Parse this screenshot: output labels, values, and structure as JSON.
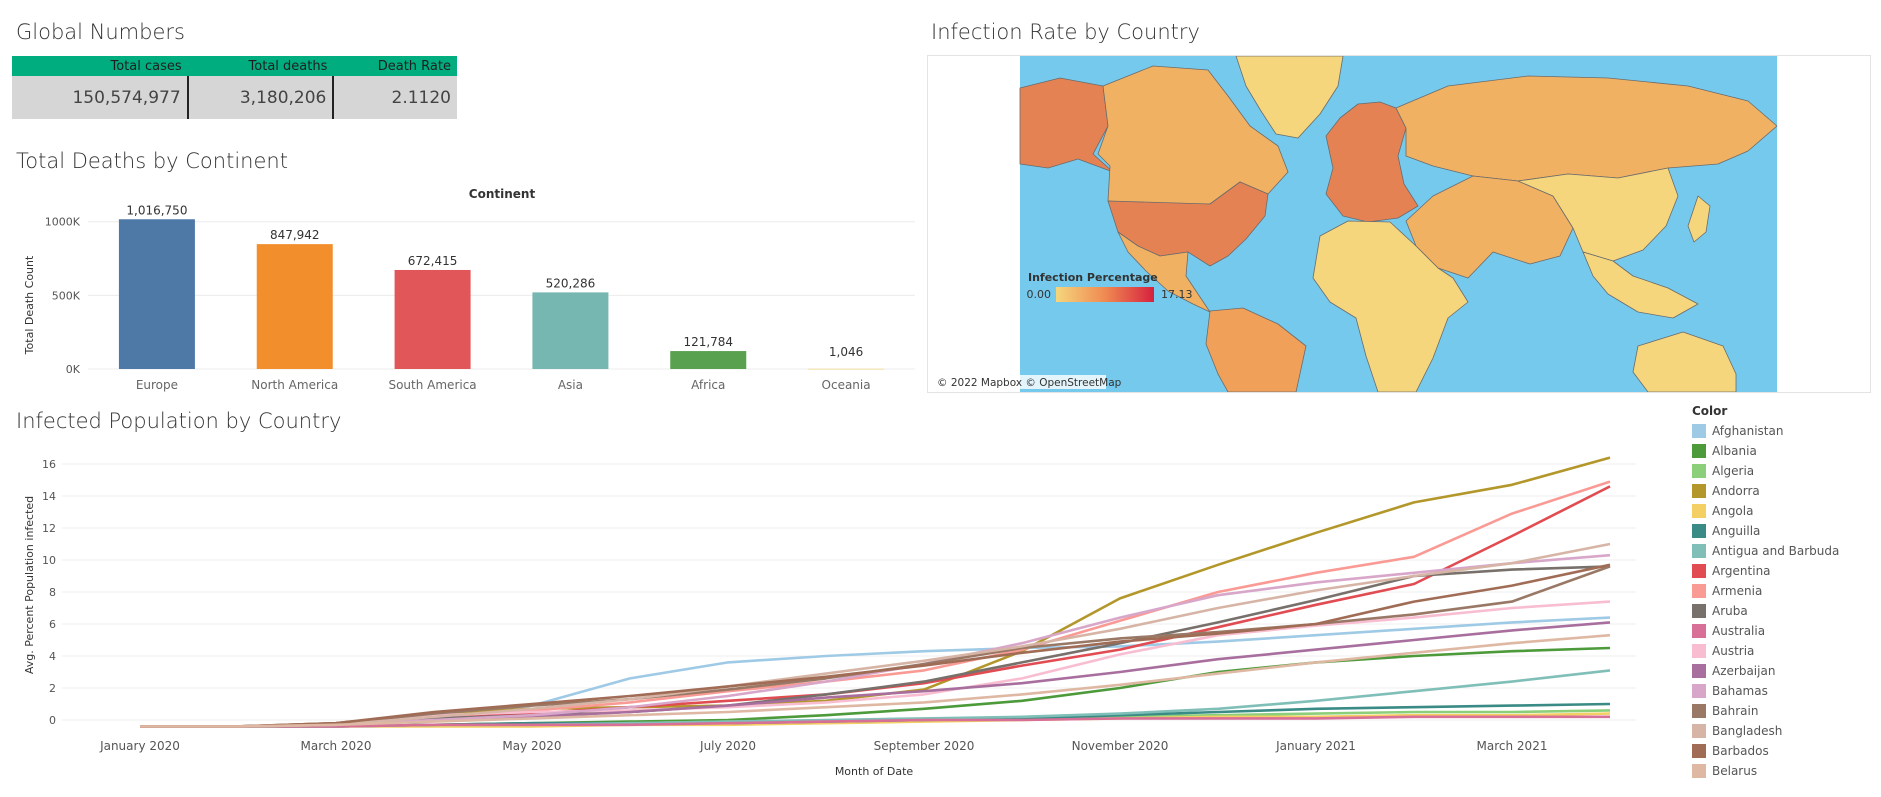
{
  "global_numbers": {
    "title": "Global Numbers",
    "headers": [
      "Total cases",
      "Total deaths",
      "Death Rate"
    ],
    "values": [
      "150,574,977",
      "3,180,206",
      "2.1120"
    ]
  },
  "deaths_by_continent": {
    "title": "Total Deaths by Continent",
    "header": "Continent",
    "ylabel": "Total Death Count"
  },
  "infection_map": {
    "title": "Infection Rate by Country",
    "legend_title": "Infection Percentage",
    "legend_min": "0.00",
    "legend_max": "17.13",
    "attribution": "© 2022 Mapbox © OpenStreetMap",
    "colors": {
      "ocean": "#74c9ec",
      "low": "#f5d67d",
      "high": "#d6213f"
    }
  },
  "infected_population": {
    "title": "Infected Population by Country",
    "legend_title": "Color",
    "legend": [
      {
        "name": "Afghanistan",
        "color": "#9fcae6"
      },
      {
        "name": "Albania",
        "color": "#4c9a3a"
      },
      {
        "name": "Algeria",
        "color": "#8ccf7b"
      },
      {
        "name": "Andorra",
        "color": "#b3972a"
      },
      {
        "name": "Angola",
        "color": "#f4cf64"
      },
      {
        "name": "Anguilla",
        "color": "#3a8b86"
      },
      {
        "name": "Antigua and Barbuda",
        "color": "#80bfb8"
      },
      {
        "name": "Argentina",
        "color": "#e14b52"
      },
      {
        "name": "Armenia",
        "color": "#fa9a95"
      },
      {
        "name": "Aruba",
        "color": "#77706b"
      },
      {
        "name": "Australia",
        "color": "#d86f97"
      },
      {
        "name": "Austria",
        "color": "#f8bdd1"
      },
      {
        "name": "Azerbaijan",
        "color": "#a86f9e"
      },
      {
        "name": "Bahamas",
        "color": "#d8a6c9"
      },
      {
        "name": "Bahrain",
        "color": "#997866"
      },
      {
        "name": "Bangladesh",
        "color": "#d7b5a6"
      },
      {
        "name": "Barbados",
        "color": "#a06c55"
      },
      {
        "name": "Belarus",
        "color": "#dfb8a3"
      }
    ]
  },
  "chart_data": [
    {
      "type": "bar",
      "title": "Total Deaths by Continent",
      "categories": [
        "Europe",
        "North America",
        "South America",
        "Asia",
        "Africa",
        "Oceania"
      ],
      "values": [
        1016750,
        847942,
        672415,
        520286,
        121784,
        1046
      ],
      "value_labels": [
        "1,016,750",
        "847,942",
        "672,415",
        "520,286",
        "121,784",
        "1,046"
      ],
      "colors": [
        "#4e79a7",
        "#f28e2b",
        "#e15759",
        "#76b7b2",
        "#59a14f",
        "#edc948"
      ],
      "ylabel": "Total Death Count",
      "ylim": [
        0,
        1100000
      ],
      "yticks": [
        0,
        500000,
        1000000
      ],
      "ytick_labels": [
        "0K",
        "500K",
        "1000K"
      ]
    },
    {
      "type": "line",
      "title": "Infected Population by Country",
      "xlabel": "Month of Date",
      "ylabel": "Avg. Percent Population infected",
      "x": [
        "2020-01",
        "2020-02",
        "2020-03",
        "2020-04",
        "2020-05",
        "2020-06",
        "2020-07",
        "2020-08",
        "2020-09",
        "2020-10",
        "2020-11",
        "2020-12",
        "2021-01",
        "2021-02",
        "2021-03",
        "2021-04"
      ],
      "xtick_labels": [
        "January 2020",
        "March 2020",
        "May 2020",
        "July 2020",
        "September 2020",
        "November 2020",
        "January 2021",
        "March 2021"
      ],
      "yticks": [
        0,
        2,
        4,
        6,
        8,
        10,
        12,
        14,
        16
      ],
      "ylim": [
        -0.5,
        17
      ],
      "series": [
        {
          "name": "Afghanistan",
          "color": "#9fcae6",
          "values": [
            -0.4,
            -0.4,
            -0.3,
            0.1,
            0.9,
            2.6,
            3.6,
            4.0,
            4.3,
            4.5,
            4.6,
            4.9,
            5.3,
            5.7,
            6.1,
            6.4
          ]
        },
        {
          "name": "Albania",
          "color": "#4c9a3a",
          "values": [
            -0.4,
            -0.4,
            -0.4,
            -0.3,
            -0.2,
            -0.1,
            0.0,
            0.3,
            0.7,
            1.2,
            2.0,
            3.0,
            3.6,
            4.0,
            4.3,
            4.5
          ]
        },
        {
          "name": "Algeria",
          "color": "#8ccf7b",
          "values": [
            -0.4,
            -0.4,
            -0.4,
            -0.3,
            -0.3,
            -0.2,
            -0.1,
            -0.1,
            0.0,
            0.1,
            0.2,
            0.3,
            0.4,
            0.5,
            0.5,
            0.6
          ]
        },
        {
          "name": "Andorra",
          "color": "#b3972a",
          "values": [
            -0.4,
            -0.4,
            -0.2,
            0.4,
            0.7,
            0.8,
            0.9,
            1.2,
            1.9,
            4.3,
            7.6,
            9.7,
            11.7,
            13.6,
            14.7,
            16.4
          ]
        },
        {
          "name": "Angola",
          "color": "#f4cf64",
          "values": [
            -0.4,
            -0.4,
            -0.4,
            -0.4,
            -0.4,
            -0.3,
            -0.3,
            -0.2,
            -0.1,
            0.0,
            0.1,
            0.2,
            0.2,
            0.3,
            0.3,
            0.4
          ]
        },
        {
          "name": "Anguilla",
          "color": "#3a8b86",
          "values": [
            -0.4,
            -0.4,
            -0.4,
            -0.3,
            -0.2,
            -0.2,
            -0.2,
            -0.1,
            0.0,
            0.1,
            0.3,
            0.5,
            0.7,
            0.8,
            0.9,
            1.0
          ]
        },
        {
          "name": "Antigua and Barbuda",
          "color": "#80bfb8",
          "values": [
            -0.4,
            -0.4,
            -0.4,
            -0.3,
            -0.3,
            -0.2,
            -0.1,
            0.0,
            0.1,
            0.2,
            0.4,
            0.7,
            1.2,
            1.8,
            2.4,
            3.1
          ]
        },
        {
          "name": "Argentina",
          "color": "#e14b52",
          "values": [
            -0.4,
            -0.4,
            -0.3,
            0.1,
            0.4,
            0.8,
            1.2,
            1.6,
            2.3,
            3.4,
            4.4,
            5.8,
            7.2,
            8.5,
            11.5,
            14.6
          ]
        },
        {
          "name": "Armenia",
          "color": "#fa9a95",
          "values": [
            -0.4,
            -0.4,
            -0.3,
            0.2,
            0.6,
            1.1,
            1.8,
            2.4,
            3.1,
            4.4,
            6.2,
            8.0,
            9.2,
            10.2,
            12.9,
            14.9
          ]
        },
        {
          "name": "Aruba",
          "color": "#77706b",
          "values": [
            -0.4,
            -0.4,
            -0.3,
            0.1,
            0.3,
            0.5,
            0.9,
            1.6,
            2.4,
            3.6,
            4.8,
            6.1,
            7.5,
            9.0,
            9.4,
            9.6
          ]
        },
        {
          "name": "Australia",
          "color": "#d86f97",
          "values": [
            -0.4,
            -0.4,
            -0.4,
            -0.3,
            -0.3,
            -0.3,
            -0.2,
            -0.1,
            0.0,
            0.0,
            0.1,
            0.1,
            0.1,
            0.2,
            0.2,
            0.2
          ]
        },
        {
          "name": "Austria",
          "color": "#f8bdd1",
          "values": [
            -0.4,
            -0.4,
            -0.2,
            0.3,
            0.5,
            0.6,
            0.8,
            1.1,
            1.6,
            2.6,
            4.1,
            5.3,
            5.9,
            6.4,
            7.0,
            7.4
          ]
        },
        {
          "name": "Azerbaijan",
          "color": "#a86f9e",
          "values": [
            -0.4,
            -0.4,
            -0.3,
            0.0,
            0.2,
            0.5,
            0.9,
            1.4,
            1.8,
            2.3,
            3.0,
            3.8,
            4.4,
            5.0,
            5.6,
            6.1
          ]
        },
        {
          "name": "Bahamas",
          "color": "#d8a6c9",
          "values": [
            -0.4,
            -0.4,
            -0.3,
            0.0,
            0.3,
            0.8,
            1.5,
            2.4,
            3.5,
            4.8,
            6.4,
            7.8,
            8.6,
            9.2,
            9.8,
            10.3
          ]
        },
        {
          "name": "Bahrain",
          "color": "#997866",
          "values": [
            -0.4,
            -0.4,
            -0.2,
            0.4,
            0.9,
            1.3,
            1.9,
            2.6,
            3.5,
            4.5,
            5.1,
            5.5,
            6.0,
            6.6,
            7.4,
            9.6
          ]
        },
        {
          "name": "Bangladesh",
          "color": "#d7b5a6",
          "values": [
            -0.4,
            -0.4,
            -0.3,
            0.2,
            0.7,
            1.3,
            2.1,
            2.9,
            3.7,
            4.6,
            5.7,
            7.0,
            8.1,
            9.0,
            9.8,
            11.0
          ]
        },
        {
          "name": "Barbados",
          "color": "#a06c55",
          "values": [
            -0.4,
            -0.4,
            -0.2,
            0.5,
            1.0,
            1.5,
            2.1,
            2.7,
            3.4,
            4.2,
            4.9,
            5.4,
            6.0,
            7.4,
            8.4,
            9.7
          ]
        },
        {
          "name": "Belarus",
          "color": "#dfb8a3",
          "values": [
            -0.4,
            -0.4,
            -0.3,
            -0.1,
            0.1,
            0.3,
            0.5,
            0.8,
            1.1,
            1.6,
            2.2,
            2.9,
            3.6,
            4.2,
            4.8,
            5.3
          ]
        }
      ]
    }
  ]
}
